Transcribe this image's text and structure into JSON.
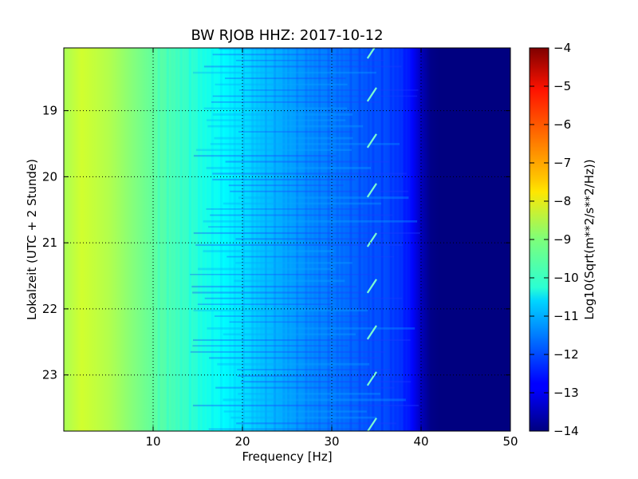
{
  "chart_data": {
    "type": "heatmap",
    "title": "BW RJOB HHZ: 2017-10-12",
    "xlabel": "Frequency [Hz]",
    "ylabel": "Lokalzeit (UTC + 2 Stunde)",
    "xlim": [
      0,
      50
    ],
    "ylim": [
      18.05,
      23.85
    ],
    "y_inverted": true,
    "x_ticks": [
      10,
      20,
      30,
      40,
      50
    ],
    "y_ticks": [
      19,
      20,
      21,
      22,
      23
    ],
    "grid": true,
    "colorbar": {
      "label": "Log10(Sqrt(m**2/s**2/Hz))",
      "range": [
        -14,
        -4
      ],
      "ticks": [
        -4,
        -5,
        -6,
        -7,
        -8,
        -9,
        -10,
        -11,
        -12,
        -13,
        -14
      ],
      "colormap": "jet"
    },
    "spectrum_profile": {
      "frequency_hz": [
        0,
        2,
        5,
        8,
        10,
        13,
        16,
        19,
        22,
        25,
        28,
        31,
        34,
        36,
        38,
        39,
        40,
        41,
        42,
        50
      ],
      "log10_amplitude": [
        -8.6,
        -8.2,
        -8.5,
        -9.0,
        -9.3,
        -9.6,
        -10.0,
        -10.4,
        -10.8,
        -11.1,
        -11.4,
        -11.6,
        -11.9,
        -12.0,
        -12.3,
        -12.7,
        -13.4,
        -13.9,
        -14.0,
        -14.0
      ]
    },
    "hourly_feature": {
      "description": "short tilted line near 34 Hz, about every 40 minutes",
      "frequency_hz": [
        34,
        35
      ],
      "times_h": [
        18.1,
        18.75,
        19.45,
        20.2,
        20.95,
        21.65,
        22.35,
        23.05,
        23.75
      ]
    }
  }
}
